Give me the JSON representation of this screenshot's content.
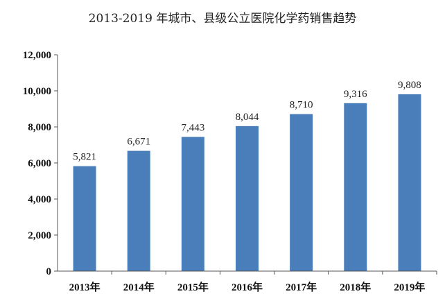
{
  "chart_data": {
    "type": "bar",
    "title": "2013-2019 年城市、县级公立医院化学药销售趋势",
    "xlabel": "",
    "ylabel": "",
    "categories": [
      "2013年",
      "2014年",
      "2015年",
      "2016年",
      "2017年",
      "2018年",
      "2019年"
    ],
    "values": [
      5821,
      6671,
      7443,
      8044,
      8710,
      9316,
      9808
    ],
    "value_labels": [
      "5,821",
      "6,671",
      "7,443",
      "8,044",
      "8,710",
      "9,316",
      "9,808"
    ],
    "ylim": [
      0,
      12000
    ],
    "yticks": [
      0,
      2000,
      4000,
      6000,
      8000,
      10000,
      12000
    ],
    "ytick_labels": [
      "0",
      "2,000",
      "4,000",
      "6,000",
      "8,000",
      "10,000",
      "12,000"
    ],
    "grid": false,
    "legend": "none",
    "bar_color": "#4a7ebb"
  }
}
